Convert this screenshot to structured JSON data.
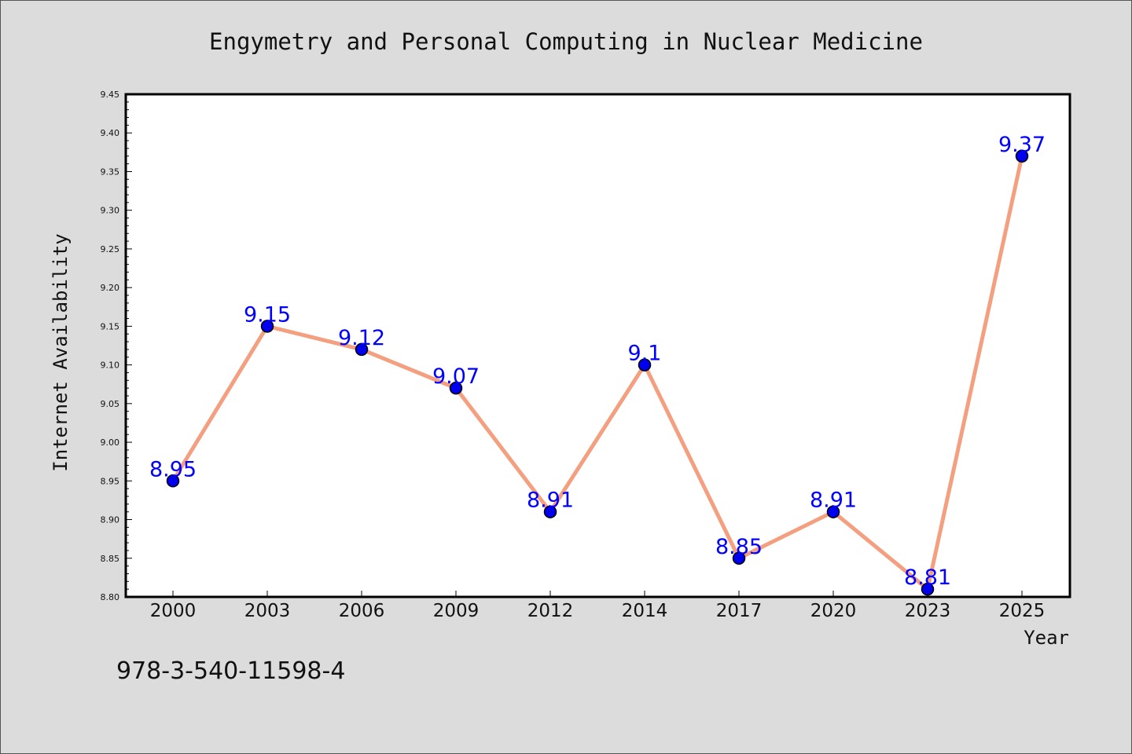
{
  "chart_data": {
    "type": "line",
    "title": "Engymetry and Personal Computing in Nuclear Medicine",
    "xlabel": "Year",
    "ylabel": "Internet Availability",
    "categories": [
      "2000",
      "2003",
      "2006",
      "2009",
      "2012",
      "2014",
      "2017",
      "2020",
      "2023",
      "2025"
    ],
    "series": [
      {
        "values": [
          8.95,
          9.15,
          9.12,
          9.07,
          8.91,
          9.1,
          8.85,
          8.91,
          8.81,
          9.37
        ],
        "labels": [
          "8.95",
          "9.15",
          "9.12",
          "9.07",
          "8.91",
          "9.1",
          "8.85",
          "8.91",
          "8.81",
          "9.37"
        ]
      }
    ],
    "ylim": [
      8.8,
      9.45
    ],
    "yticks": [
      "8.80",
      "8.85",
      "8.90",
      "8.95",
      "9.00",
      "9.05",
      "9.10",
      "9.15",
      "9.20",
      "9.25",
      "9.30",
      "9.35",
      "9.40",
      "9.45"
    ],
    "grid": false,
    "legend": "none",
    "line_color": "#f4a080",
    "marker_color": "#0000ee",
    "label_color": "#0000ff"
  },
  "footer": {
    "isbn": "978-3-540-11598-4"
  }
}
